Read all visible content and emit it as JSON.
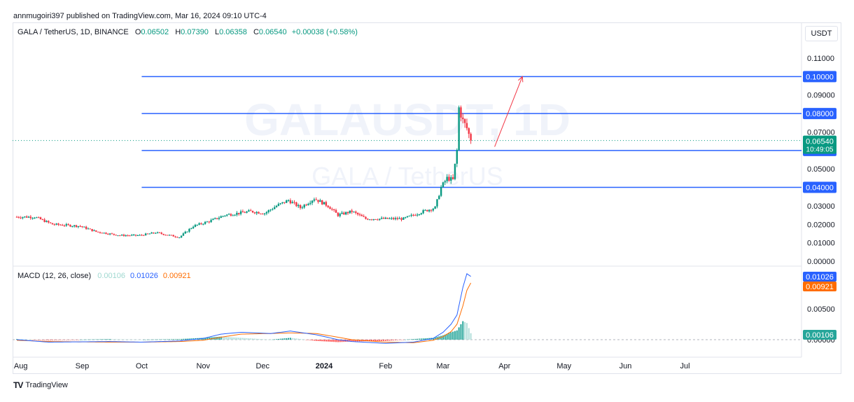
{
  "publisher": "annmugoiri397 published on TradingView.com, Mar 16, 2024 09:10 UTC-4",
  "legend": {
    "symbol": "GALA / TetherUS, 1D, BINANCE",
    "o_label": "O",
    "o_value": "0.06502",
    "h_label": "H",
    "h_value": "0.07390",
    "l_label": "L",
    "l_value": "0.06358",
    "c_label": "C",
    "c_value": "0.06540",
    "change": "+0.00038 (+0.58%)"
  },
  "currency_button": "USDT",
  "watermark": {
    "title": "GALAUSDT, 1D",
    "subtitle": "GALA / TetherUS"
  },
  "price_label": {
    "price": "0.06540",
    "countdown": "10:49:05"
  },
  "level_labels": [
    "0.10000",
    "0.08000",
    "0.06000",
    "0.04000"
  ],
  "macd_legend": {
    "title": "MACD (12, 26, close)",
    "hist": "0.00106",
    "macd": "0.01026",
    "signal": "0.00921"
  },
  "macd_labels": {
    "macd": "0.01026",
    "signal": "0.00921",
    "hist": "0.00106"
  },
  "branding": "TradingView",
  "colors": {
    "up": "#089981",
    "down": "#f23645",
    "level": "#2962ff",
    "macd": "#2962ff",
    "signal": "#ff6d00",
    "hist_up": "#26a69a",
    "hist_up_weak": "#b2dfdb",
    "hist_down": "#ff5252",
    "arrow": "#f23645"
  },
  "chart_data": {
    "type": "candlestick",
    "price_axis": {
      "ylim": [
        0,
        0.11
      ],
      "ticks": [
        "0.11000",
        "0.10000",
        "0.09000",
        "0.08000",
        "0.07000",
        "0.06000",
        "0.05000",
        "0.04000",
        "0.03000",
        "0.02000",
        "0.01000",
        "0.00000"
      ]
    },
    "x_ticks": [
      "Aug",
      "Sep",
      "Oct",
      "Nov",
      "Dec",
      "2024",
      "Feb",
      "Mar",
      "Apr",
      "May",
      "Jun",
      "Jul"
    ],
    "x_range": [
      "2023-07-30",
      "2024-07-28"
    ],
    "price_path": [
      [
        "2023-07-30",
        0.024
      ],
      [
        "2023-08-08",
        0.024
      ],
      [
        "2023-08-17",
        0.02
      ],
      [
        "2023-08-31",
        0.019
      ],
      [
        "2023-09-08",
        0.016
      ],
      [
        "2023-09-20",
        0.014
      ],
      [
        "2023-09-30",
        0.014
      ],
      [
        "2023-10-08",
        0.0155
      ],
      [
        "2023-10-20",
        0.013
      ],
      [
        "2023-10-27",
        0.019
      ],
      [
        "2023-11-05",
        0.022
      ],
      [
        "2023-11-12",
        0.025
      ],
      [
        "2023-11-25",
        0.027
      ],
      [
        "2023-12-02",
        0.026
      ],
      [
        "2023-12-08",
        0.03
      ],
      [
        "2023-12-14",
        0.033
      ],
      [
        "2023-12-20",
        0.029
      ],
      [
        "2023-12-27",
        0.034
      ],
      [
        "2024-01-03",
        0.03
      ],
      [
        "2024-01-08",
        0.025
      ],
      [
        "2024-01-15",
        0.027
      ],
      [
        "2024-01-22",
        0.023
      ],
      [
        "2024-02-01",
        0.023
      ],
      [
        "2024-02-10",
        0.023
      ],
      [
        "2024-02-20",
        0.027
      ],
      [
        "2024-02-26",
        0.029
      ],
      [
        "2024-02-29",
        0.04
      ],
      [
        "2024-03-03",
        0.045
      ],
      [
        "2024-03-06",
        0.044
      ],
      [
        "2024-03-08",
        0.06
      ],
      [
        "2024-03-09",
        0.083
      ],
      [
        "2024-03-11",
        0.076
      ],
      [
        "2024-03-13",
        0.072
      ],
      [
        "2024-03-15",
        0.0654
      ]
    ],
    "last_price": 0.0654,
    "horizontal_levels": [
      {
        "price": 0.1,
        "from": "2023-10-01"
      },
      {
        "price": 0.08,
        "from": "2023-10-01"
      },
      {
        "price": 0.06,
        "from": "2023-10-01"
      },
      {
        "price": 0.04,
        "from": "2023-10-01"
      }
    ],
    "arrow": {
      "from": [
        "2024-03-27",
        0.062
      ],
      "to": [
        "2024-04-10",
        0.1
      ]
    },
    "macd": {
      "title": "MACD (12, 26, close)",
      "ylim": [
        -0.0005,
        0.0105
      ],
      "ticks": [
        "0.00500",
        "0.00000"
      ],
      "macd_path": [
        [
          "2023-07-30",
          0.0
        ],
        [
          "2023-08-15",
          -0.0004
        ],
        [
          "2023-09-15",
          -0.0003
        ],
        [
          "2023-10-01",
          -0.0004
        ],
        [
          "2023-10-20",
          -0.0002
        ],
        [
          "2023-11-01",
          0.0002
        ],
        [
          "2023-11-10",
          0.0009
        ],
        [
          "2023-11-20",
          0.0012
        ],
        [
          "2023-12-05",
          0.001
        ],
        [
          "2023-12-15",
          0.0014
        ],
        [
          "2023-12-28",
          0.0008
        ],
        [
          "2024-01-08",
          0.0
        ],
        [
          "2024-01-15",
          -0.0003
        ],
        [
          "2024-02-01",
          -0.0006
        ],
        [
          "2024-02-15",
          -0.0004
        ],
        [
          "2024-02-25",
          0.0002
        ],
        [
          "2024-03-01",
          0.0012
        ],
        [
          "2024-03-05",
          0.0025
        ],
        [
          "2024-03-08",
          0.004
        ],
        [
          "2024-03-11",
          0.0085
        ],
        [
          "2024-03-13",
          0.0107
        ],
        [
          "2024-03-15",
          0.01026
        ]
      ],
      "signal_path": [
        [
          "2023-07-30",
          -0.0001
        ],
        [
          "2023-08-15",
          -0.0003
        ],
        [
          "2023-09-15",
          -0.0004
        ],
        [
          "2023-10-01",
          -0.0004
        ],
        [
          "2023-10-20",
          -0.0003
        ],
        [
          "2023-11-01",
          -0.0001
        ],
        [
          "2023-11-10",
          0.0004
        ],
        [
          "2023-11-20",
          0.0009
        ],
        [
          "2023-12-05",
          0.001
        ],
        [
          "2023-12-15",
          0.0011
        ],
        [
          "2023-12-28",
          0.001
        ],
        [
          "2024-01-08",
          0.0004
        ],
        [
          "2024-01-15",
          0.0
        ],
        [
          "2024-02-01",
          -0.0004
        ],
        [
          "2024-02-15",
          -0.0005
        ],
        [
          "2024-02-25",
          -0.0001
        ],
        [
          "2024-03-01",
          0.0005
        ],
        [
          "2024-03-05",
          0.0013
        ],
        [
          "2024-03-08",
          0.0025
        ],
        [
          "2024-03-11",
          0.0055
        ],
        [
          "2024-03-13",
          0.008
        ],
        [
          "2024-03-15",
          0.00921
        ]
      ]
    }
  }
}
